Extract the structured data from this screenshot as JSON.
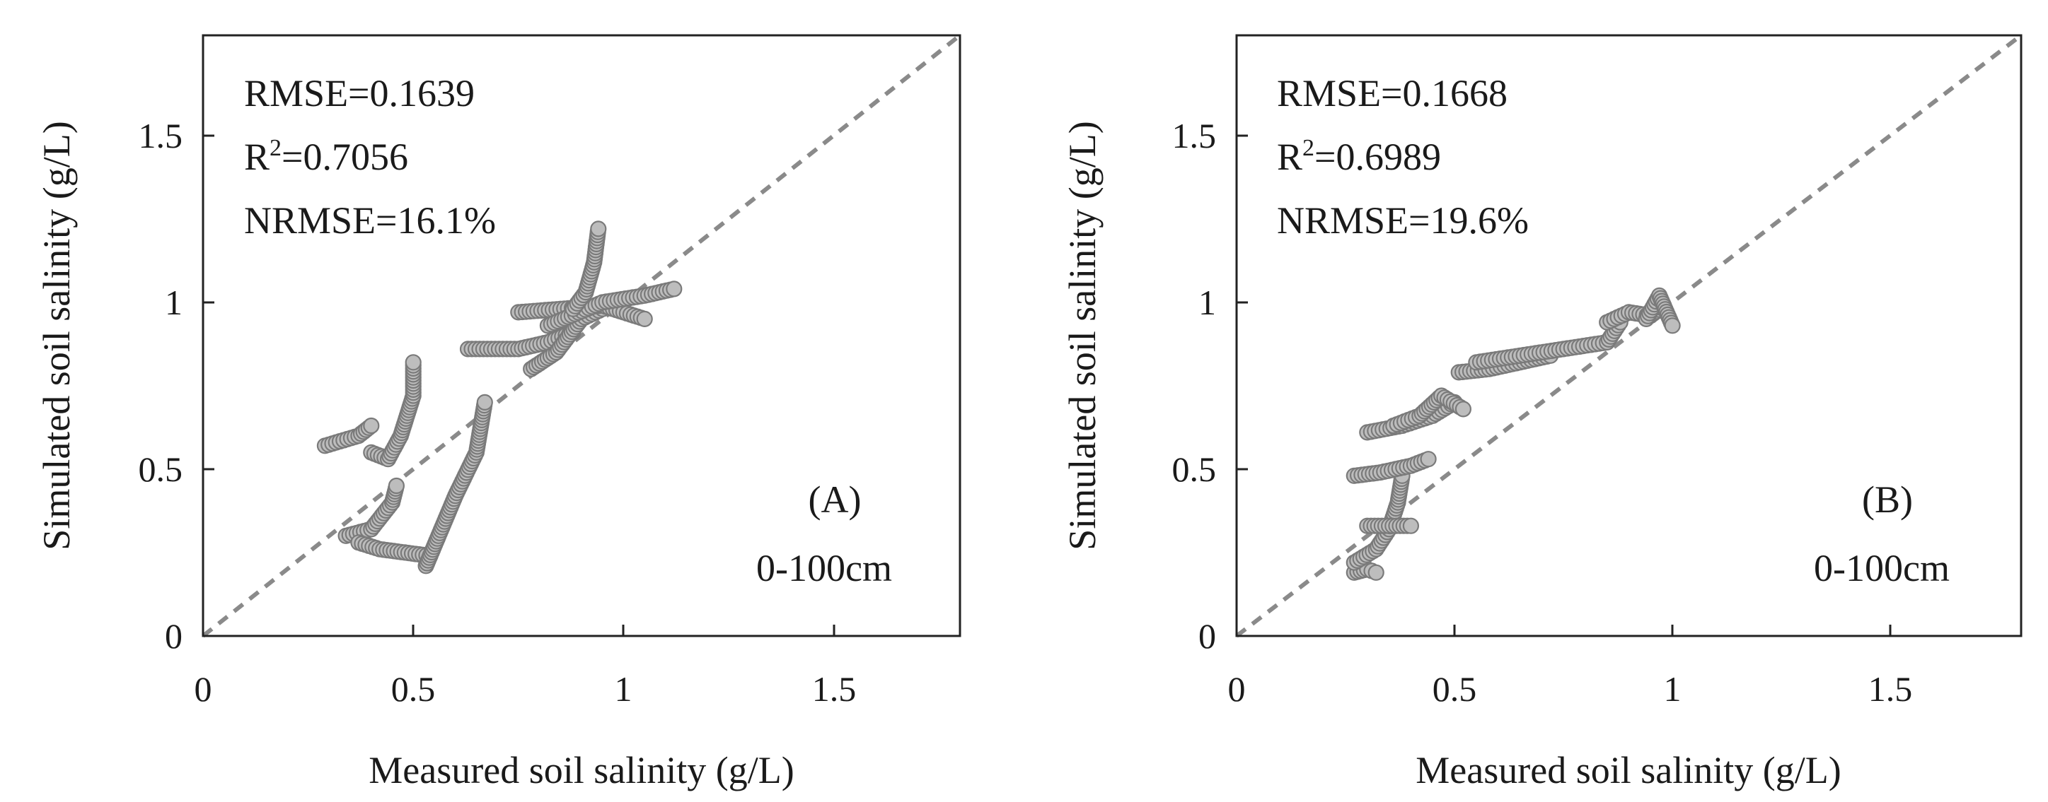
{
  "chart_data": [
    {
      "type": "scatter",
      "panel_label": "(A)",
      "depth_label": "0-100cm",
      "xlabel": "Measured soil salinity (g/L)",
      "ylabel": "Simulated soil salinity (g/L)",
      "xlim": [
        0,
        1.8
      ],
      "ylim": [
        0,
        1.8
      ],
      "xticks": [
        0,
        0.5,
        1,
        1.5
      ],
      "xtick_labels": [
        "0",
        "0.5",
        "1",
        "1.5"
      ],
      "yticks": [
        0,
        0.5,
        1,
        1.5
      ],
      "ytick_labels": [
        "0",
        "0.5",
        "1",
        "1.5"
      ],
      "reference_line": "1:1",
      "stats": {
        "rmse": "RMSE=0.1639",
        "r2_prefix": "R",
        "r2_sup": "2",
        "r2_value": "=0.7056",
        "nrmse": "NRMSE=16.1%"
      },
      "point_color": "#bdbdbd",
      "point_stroke": "#7a7a7a",
      "segments": [
        [
          [
            0.29,
            0.57
          ],
          [
            0.37,
            0.6
          ],
          [
            0.4,
            0.63
          ]
        ],
        [
          [
            0.4,
            0.55
          ],
          [
            0.44,
            0.53
          ],
          [
            0.47,
            0.6
          ],
          [
            0.5,
            0.72
          ],
          [
            0.5,
            0.82
          ]
        ],
        [
          [
            0.34,
            0.3
          ],
          [
            0.4,
            0.32
          ],
          [
            0.45,
            0.4
          ],
          [
            0.46,
            0.45
          ]
        ],
        [
          [
            0.37,
            0.28
          ],
          [
            0.42,
            0.26
          ],
          [
            0.48,
            0.25
          ],
          [
            0.54,
            0.24
          ]
        ],
        [
          [
            0.53,
            0.21
          ],
          [
            0.56,
            0.3
          ],
          [
            0.6,
            0.42
          ],
          [
            0.65,
            0.55
          ],
          [
            0.67,
            0.7
          ]
        ],
        [
          [
            0.63,
            0.86
          ],
          [
            0.75,
            0.86
          ],
          [
            0.82,
            0.88
          ],
          [
            0.88,
            0.91
          ]
        ],
        [
          [
            0.78,
            0.8
          ],
          [
            0.84,
            0.85
          ],
          [
            0.9,
            0.95
          ],
          [
            0.95,
            0.98
          ]
        ],
        [
          [
            0.75,
            0.97
          ],
          [
            0.85,
            0.98
          ],
          [
            0.95,
            0.99
          ],
          [
            1.05,
            0.95
          ]
        ],
        [
          [
            0.82,
            0.93
          ],
          [
            0.95,
            1.0
          ],
          [
            1.05,
            1.02
          ],
          [
            1.12,
            1.04
          ]
        ],
        [
          [
            0.88,
            0.98
          ],
          [
            0.91,
            1.03
          ],
          [
            0.93,
            1.12
          ],
          [
            0.94,
            1.22
          ]
        ]
      ]
    },
    {
      "type": "scatter",
      "panel_label": "(B)",
      "depth_label": "0-100cm",
      "xlabel": "Measured soil salinity (g/L)",
      "ylabel": "Simulated soil salinity (g/L)",
      "xlim": [
        0,
        1.8
      ],
      "ylim": [
        0,
        1.8
      ],
      "xticks": [
        0,
        0.5,
        1,
        1.5
      ],
      "xtick_labels": [
        "0",
        "0.5",
        "1",
        "1.5"
      ],
      "yticks": [
        0,
        0.5,
        1,
        1.5
      ],
      "ytick_labels": [
        "0",
        "0.5",
        "1",
        "1.5"
      ],
      "reference_line": "1:1",
      "stats": {
        "rmse": "RMSE=0.1668",
        "r2_prefix": "R",
        "r2_sup": "2",
        "r2_value": "=0.6989",
        "nrmse": "NRMSE=19.6%"
      },
      "point_color": "#bdbdbd",
      "point_stroke": "#7a7a7a",
      "segments": [
        [
          [
            0.27,
            0.19
          ],
          [
            0.3,
            0.2
          ],
          [
            0.32,
            0.19
          ]
        ],
        [
          [
            0.27,
            0.22
          ],
          [
            0.32,
            0.26
          ],
          [
            0.35,
            0.32
          ],
          [
            0.37,
            0.4
          ],
          [
            0.38,
            0.48
          ]
        ],
        [
          [
            0.27,
            0.48
          ],
          [
            0.33,
            0.49
          ],
          [
            0.4,
            0.51
          ],
          [
            0.44,
            0.53
          ]
        ],
        [
          [
            0.3,
            0.33
          ],
          [
            0.35,
            0.33
          ],
          [
            0.4,
            0.33
          ]
        ],
        [
          [
            0.3,
            0.61
          ],
          [
            0.38,
            0.63
          ],
          [
            0.45,
            0.66
          ],
          [
            0.5,
            0.7
          ]
        ],
        [
          [
            0.36,
            0.63
          ],
          [
            0.42,
            0.66
          ],
          [
            0.47,
            0.72
          ],
          [
            0.52,
            0.68
          ]
        ],
        [
          [
            0.51,
            0.79
          ],
          [
            0.58,
            0.8
          ],
          [
            0.65,
            0.82
          ],
          [
            0.72,
            0.84
          ]
        ],
        [
          [
            0.55,
            0.82
          ],
          [
            0.65,
            0.84
          ],
          [
            0.75,
            0.86
          ],
          [
            0.85,
            0.88
          ],
          [
            0.88,
            0.94
          ]
        ],
        [
          [
            0.85,
            0.94
          ],
          [
            0.9,
            0.97
          ],
          [
            0.95,
            0.96
          ],
          [
            0.98,
            0.99
          ]
        ],
        [
          [
            0.94,
            0.95
          ],
          [
            0.97,
            1.02
          ],
          [
            1.0,
            0.93
          ]
        ]
      ]
    }
  ]
}
